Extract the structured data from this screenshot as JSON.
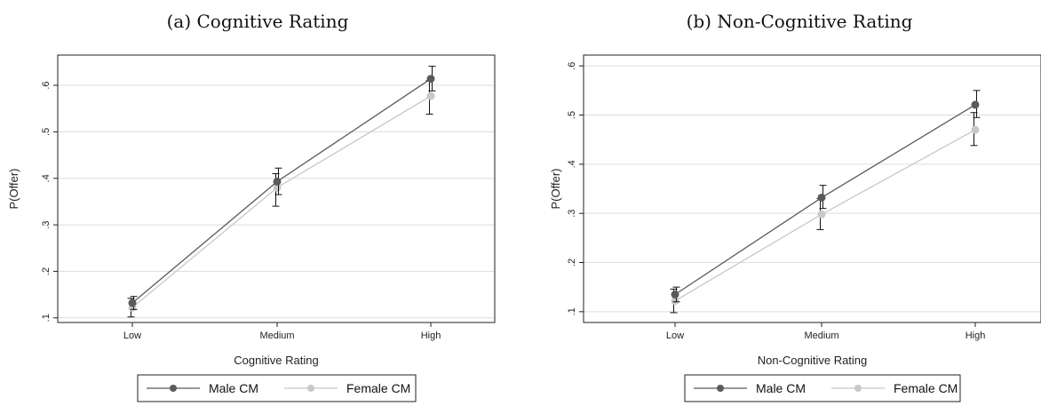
{
  "colors": {
    "male": "#5a5a5a",
    "female": "#c8c8c8",
    "grid": "#dcdcdc",
    "ci": "#111111"
  },
  "chart_data": [
    {
      "type": "line",
      "title": "(a) Cognitive Rating",
      "xlabel": "Cognitive Rating",
      "ylabel": "P(Offer)",
      "categories": [
        "Low",
        "Medium",
        "High"
      ],
      "yticks": [
        ".1",
        ".2",
        ".3",
        ".4",
        ".5",
        ".6"
      ],
      "ytick_values": [
        0.1,
        0.2,
        0.3,
        0.4,
        0.5,
        0.6
      ],
      "ylim": [
        0.09,
        0.665
      ],
      "grid": true,
      "legend": "bottom",
      "series": [
        {
          "name": "Male CM",
          "values": [
            0.132,
            0.393,
            0.614
          ],
          "ci_low": [
            0.118,
            0.365,
            0.588
          ],
          "ci_high": [
            0.146,
            0.422,
            0.641
          ]
        },
        {
          "name": "Female CM",
          "values": [
            0.122,
            0.38,
            0.577
          ],
          "ci_low": [
            0.102,
            0.34,
            0.538
          ],
          "ci_high": [
            0.142,
            0.41,
            0.61
          ]
        }
      ]
    },
    {
      "type": "line",
      "title": "(b) Non-Cognitive Rating",
      "xlabel": "Non-Cognitive Rating",
      "ylabel": "P(Offer)",
      "categories": [
        "Low",
        "Medium",
        "High"
      ],
      "yticks": [
        ".1",
        ".2",
        ".3",
        ".4",
        ".5",
        ".6"
      ],
      "ytick_values": [
        0.1,
        0.2,
        0.3,
        0.4,
        0.5,
        0.6
      ],
      "ylim": [
        0.078,
        0.622
      ],
      "grid": true,
      "legend": "bottom",
      "series": [
        {
          "name": "Male CM",
          "values": [
            0.135,
            0.332,
            0.521
          ],
          "ci_low": [
            0.12,
            0.31,
            0.495
          ],
          "ci_high": [
            0.15,
            0.357,
            0.55
          ]
        },
        {
          "name": "Female CM",
          "values": [
            0.122,
            0.298,
            0.47
          ],
          "ci_low": [
            0.098,
            0.267,
            0.438
          ],
          "ci_high": [
            0.146,
            0.33,
            0.505
          ]
        }
      ]
    }
  ]
}
